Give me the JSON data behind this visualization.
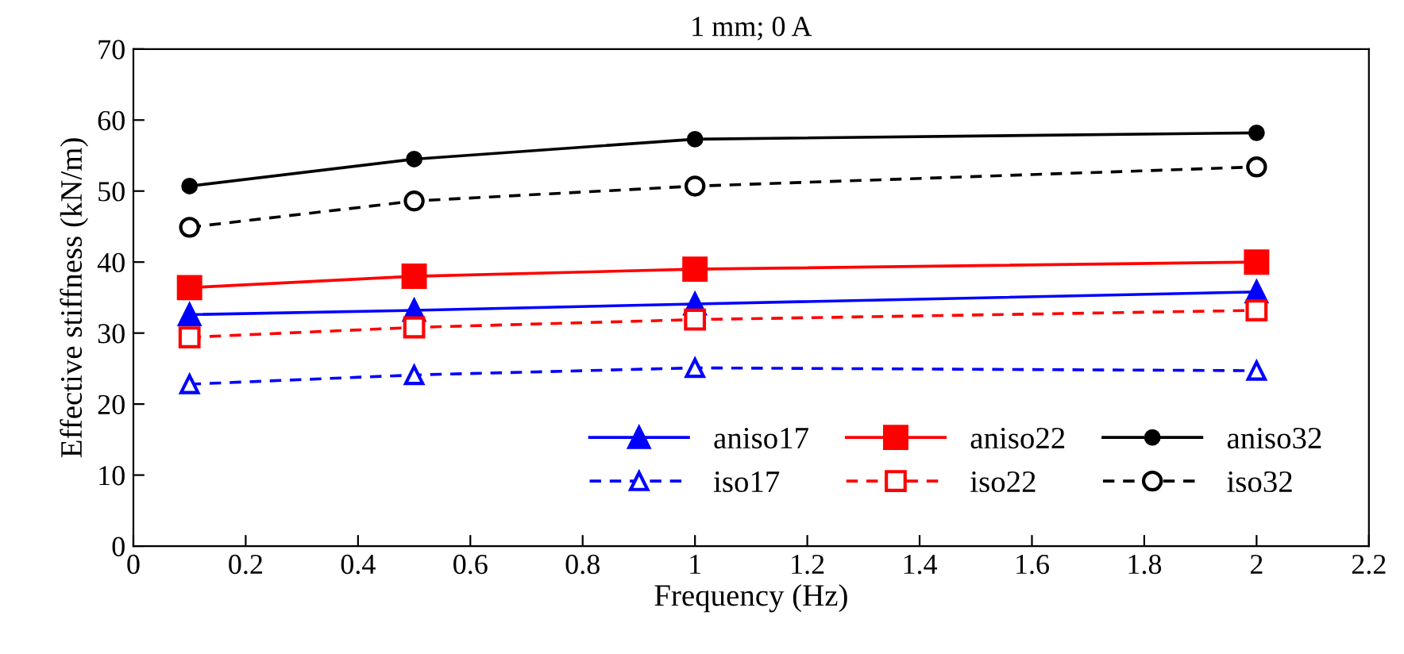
{
  "chart_data": {
    "type": "line",
    "title": "1 mm; 0 A",
    "xlabel": "Frequency (Hz)",
    "ylabel": "Effective stiffness (kN/m)",
    "x": [
      0.1,
      0.5,
      1,
      2
    ],
    "series": [
      {
        "name": "aniso17",
        "color": "#0000ff",
        "values": [
          32.6,
          33.2,
          34.1,
          35.8
        ],
        "marker": "triangle",
        "line_style": "solid"
      },
      {
        "name": "aniso22",
        "color": "#ff0000",
        "values": [
          36.4,
          38.0,
          39.0,
          40.0
        ],
        "marker": "square",
        "line_style": "solid"
      },
      {
        "name": "aniso32",
        "color": "#000000",
        "values": [
          50.7,
          54.5,
          57.3,
          58.2
        ],
        "marker": "circle",
        "line_style": "solid"
      },
      {
        "name": "iso17",
        "color": "#0000ff",
        "values": [
          22.8,
          24.1,
          25.1,
          24.7
        ],
        "marker": "triangle",
        "line_style": "dashed"
      },
      {
        "name": "iso22",
        "color": "#ff0000",
        "values": [
          29.4,
          30.8,
          31.9,
          33.2
        ],
        "marker": "square",
        "line_style": "dashed"
      },
      {
        "name": "iso32",
        "color": "#000000",
        "values": [
          44.9,
          48.6,
          50.7,
          53.4
        ],
        "marker": "circle",
        "line_style": "dashed"
      }
    ],
    "xlim": [
      0,
      2.2
    ],
    "xticks": [
      0,
      0.2,
      0.4,
      0.6,
      0.8,
      1,
      1.2,
      1.4,
      1.6,
      1.8,
      2,
      2.2
    ],
    "ylim": [
      0,
      70
    ],
    "yticks": [
      0,
      10,
      20,
      30,
      40,
      50,
      60,
      70
    ],
    "grid": false,
    "legend": "bottom right"
  }
}
